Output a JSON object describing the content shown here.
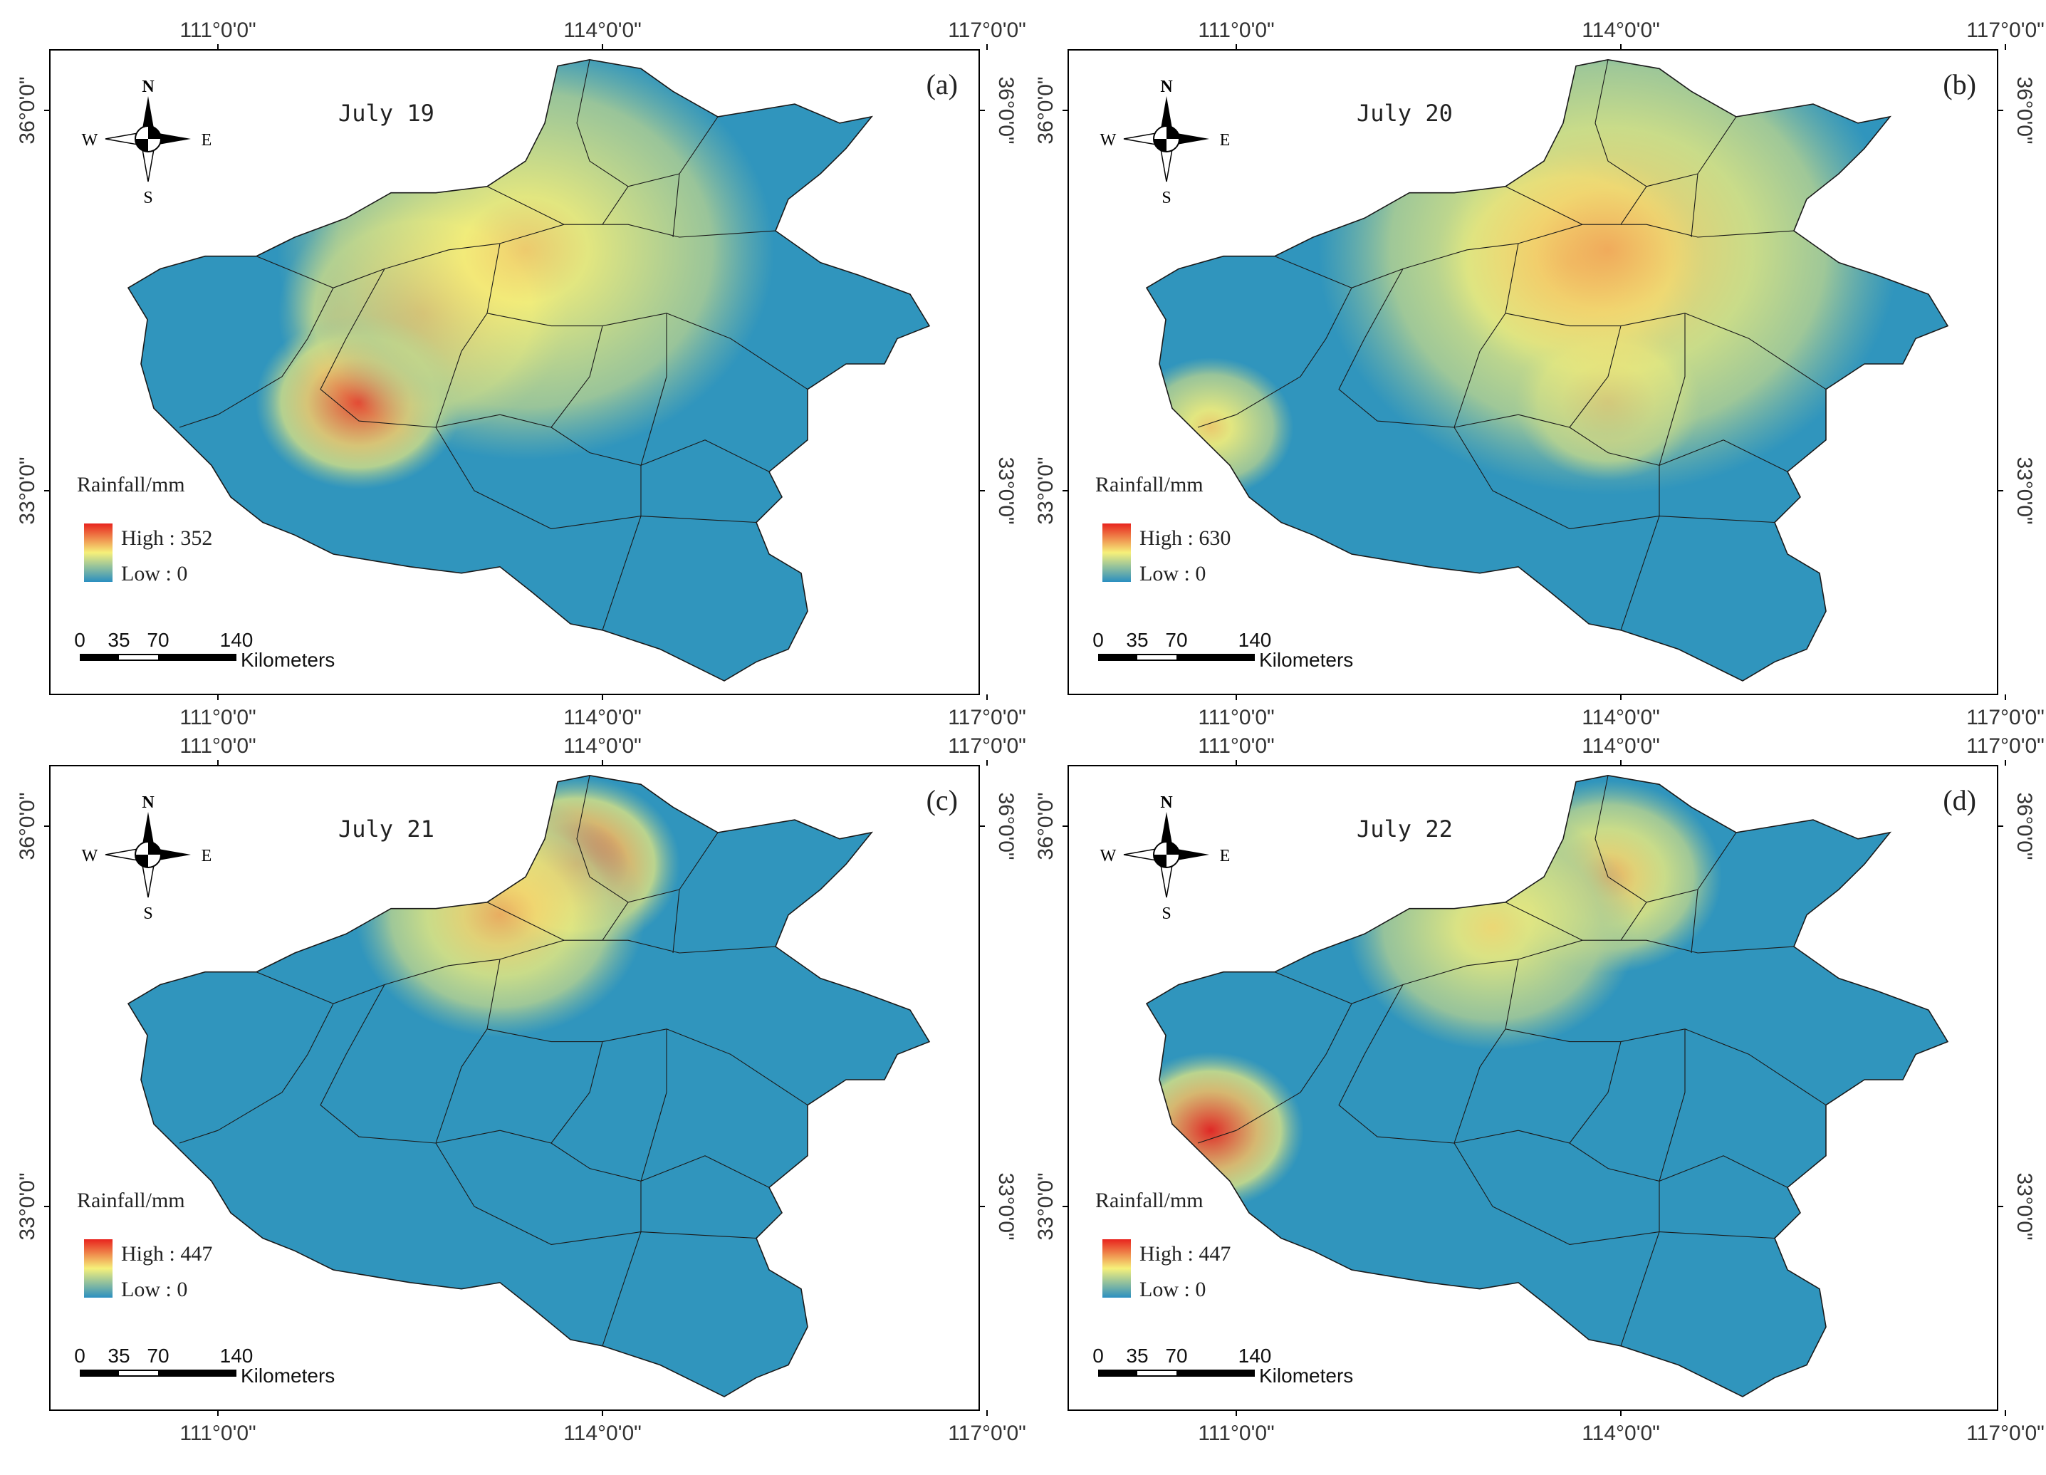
{
  "axis_labels": {
    "lon": [
      "111°0'0\"",
      "114°0'0\"",
      "117°0'0\""
    ],
    "lat": [
      "36°0'0\"",
      "33°0'0\""
    ]
  },
  "compass": {
    "n": "N",
    "s": "S",
    "e": "E",
    "w": "W"
  },
  "scale_bar": {
    "ticks": [
      "0",
      "35",
      "70",
      "140"
    ],
    "unit": "Kilometers"
  },
  "legend_title": "Rainfall/mm",
  "panels": [
    {
      "id": "a",
      "tag": "(a)",
      "date": "July 19",
      "high_label": "High : 352",
      "low_label": "Low  : 0",
      "high": 352,
      "low": 0,
      "hotspots": [
        {
          "lon": 112.6,
          "lat": 34.4,
          "level": 1.0,
          "radius_km": 70
        },
        {
          "lon": 112.1,
          "lat": 33.7,
          "level": 0.9,
          "radius_km": 50
        },
        {
          "lon": 113.4,
          "lat": 34.9,
          "level": 0.45,
          "radius_km": 120
        }
      ]
    },
    {
      "id": "b",
      "tag": "(b)",
      "date": "July 20",
      "high_label": "High : 630",
      "low_label": "Low  : 0",
      "high": 630,
      "low": 0,
      "hotspots": [
        {
          "lon": 113.6,
          "lat": 34.8,
          "level": 1.0,
          "radius_km": 65
        },
        {
          "lon": 113.9,
          "lat": 33.7,
          "level": 0.8,
          "radius_km": 45
        },
        {
          "lon": 113.9,
          "lat": 34.9,
          "level": 0.55,
          "radius_km": 140
        },
        {
          "lon": 110.8,
          "lat": 33.5,
          "level": 0.45,
          "radius_km": 40
        }
      ]
    },
    {
      "id": "c",
      "tag": "(c)",
      "date": "July 21",
      "high_label": "High : 447",
      "low_label": "Low  : 0",
      "high": 447,
      "low": 0,
      "hotspots": [
        {
          "lon": 113.8,
          "lat": 35.7,
          "level": 1.0,
          "radius_km": 50
        },
        {
          "lon": 113.2,
          "lat": 35.3,
          "level": 0.55,
          "radius_km": 70
        }
      ]
    },
    {
      "id": "d",
      "tag": "(d)",
      "date": "July 22",
      "high_label": "High : 447",
      "low_label": "Low  : 0",
      "high": 447,
      "low": 0,
      "hotspots": [
        {
          "lon": 110.8,
          "lat": 33.6,
          "level": 1.0,
          "radius_km": 45
        },
        {
          "lon": 113.9,
          "lat": 35.6,
          "level": 0.55,
          "radius_km": 55
        },
        {
          "lon": 113.0,
          "lat": 35.2,
          "level": 0.4,
          "radius_km": 70
        }
      ]
    }
  ],
  "colors": {
    "low": "#2b8fc0",
    "mid": "#f6f07a",
    "high": "#e8231e",
    "boundary": "#1a1a1a",
    "frame": "#000000"
  }
}
